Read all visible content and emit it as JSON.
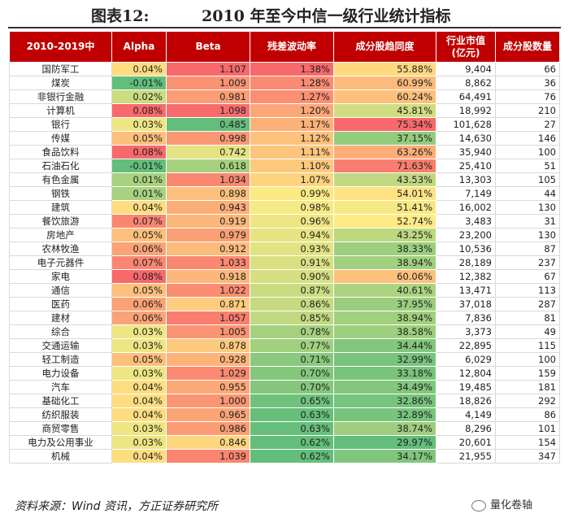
{
  "title": {
    "label": "图表12:",
    "text": "2010 年至今中信一级行业统计指标"
  },
  "columns": [
    "2010-2019中",
    "Alpha",
    "Beta",
    "残差波动率",
    "成分股趋同度",
    "行业市值\n(亿元)",
    "成分股数量"
  ],
  "rows": [
    {
      "industry": "国防军工",
      "alpha": "0.04%",
      "beta": "1.107",
      "resid": "1.38%",
      "conv": "55.88%",
      "mcap": "9,404",
      "count": "66"
    },
    {
      "industry": "煤炭",
      "alpha": "-0.01%",
      "beta": "1.009",
      "resid": "1.28%",
      "conv": "60.99%",
      "mcap": "8,862",
      "count": "36"
    },
    {
      "industry": "非银行金融",
      "alpha": "0.02%",
      "beta": "0.981",
      "resid": "1.27%",
      "conv": "60.24%",
      "mcap": "64,491",
      "count": "76"
    },
    {
      "industry": "计算机",
      "alpha": "0.08%",
      "beta": "1.098",
      "resid": "1.20%",
      "conv": "45.81%",
      "mcap": "18,992",
      "count": "210"
    },
    {
      "industry": "银行",
      "alpha": "0.03%",
      "beta": "0.485",
      "resid": "1.17%",
      "conv": "75.34%",
      "mcap": "101,628",
      "count": "27"
    },
    {
      "industry": "传媒",
      "alpha": "0.05%",
      "beta": "0.998",
      "resid": "1.12%",
      "conv": "37.15%",
      "mcap": "14,630",
      "count": "146"
    },
    {
      "industry": "食品饮料",
      "alpha": "0.08%",
      "beta": "0.742",
      "resid": "1.11%",
      "conv": "63.26%",
      "mcap": "35,940",
      "count": "100"
    },
    {
      "industry": "石油石化",
      "alpha": "-0.01%",
      "beta": "0.618",
      "resid": "1.10%",
      "conv": "71.63%",
      "mcap": "25,410",
      "count": "51"
    },
    {
      "industry": "有色金属",
      "alpha": "0.01%",
      "beta": "1.034",
      "resid": "1.07%",
      "conv": "43.53%",
      "mcap": "13,303",
      "count": "105"
    },
    {
      "industry": "钢铁",
      "alpha": "0.01%",
      "beta": "0.898",
      "resid": "0.99%",
      "conv": "54.01%",
      "mcap": "7,149",
      "count": "44"
    },
    {
      "industry": "建筑",
      "alpha": "0.04%",
      "beta": "0.943",
      "resid": "0.98%",
      "conv": "51.41%",
      "mcap": "16,002",
      "count": "130"
    },
    {
      "industry": "餐饮旅游",
      "alpha": "0.07%",
      "beta": "0.919",
      "resid": "0.96%",
      "conv": "52.74%",
      "mcap": "3,483",
      "count": "31"
    },
    {
      "industry": "房地产",
      "alpha": "0.05%",
      "beta": "0.979",
      "resid": "0.94%",
      "conv": "43.25%",
      "mcap": "23,200",
      "count": "130"
    },
    {
      "industry": "农林牧渔",
      "alpha": "0.06%",
      "beta": "0.912",
      "resid": "0.93%",
      "conv": "38.33%",
      "mcap": "10,536",
      "count": "87"
    },
    {
      "industry": "电子元器件",
      "alpha": "0.07%",
      "beta": "1.033",
      "resid": "0.91%",
      "conv": "38.94%",
      "mcap": "28,189",
      "count": "237"
    },
    {
      "industry": "家电",
      "alpha": "0.08%",
      "beta": "0.918",
      "resid": "0.90%",
      "conv": "60.06%",
      "mcap": "12,382",
      "count": "67"
    },
    {
      "industry": "通信",
      "alpha": "0.05%",
      "beta": "1.022",
      "resid": "0.87%",
      "conv": "40.61%",
      "mcap": "13,471",
      "count": "113"
    },
    {
      "industry": "医药",
      "alpha": "0.06%",
      "beta": "0.871",
      "resid": "0.86%",
      "conv": "37.95%",
      "mcap": "37,018",
      "count": "287"
    },
    {
      "industry": "建材",
      "alpha": "0.06%",
      "beta": "1.057",
      "resid": "0.85%",
      "conv": "38.94%",
      "mcap": "7,836",
      "count": "81"
    },
    {
      "industry": "综合",
      "alpha": "0.03%",
      "beta": "1.005",
      "resid": "0.78%",
      "conv": "38.58%",
      "mcap": "3,373",
      "count": "49"
    },
    {
      "industry": "交通运输",
      "alpha": "0.03%",
      "beta": "0.878",
      "resid": "0.77%",
      "conv": "34.44%",
      "mcap": "22,895",
      "count": "115"
    },
    {
      "industry": "轻工制造",
      "alpha": "0.05%",
      "beta": "0.928",
      "resid": "0.71%",
      "conv": "32.99%",
      "mcap": "6,029",
      "count": "100"
    },
    {
      "industry": "电力设备",
      "alpha": "0.03%",
      "beta": "1.029",
      "resid": "0.70%",
      "conv": "33.18%",
      "mcap": "12,804",
      "count": "159"
    },
    {
      "industry": "汽车",
      "alpha": "0.04%",
      "beta": "0.955",
      "resid": "0.70%",
      "conv": "34.49%",
      "mcap": "19,485",
      "count": "181"
    },
    {
      "industry": "基础化工",
      "alpha": "0.04%",
      "beta": "1.000",
      "resid": "0.65%",
      "conv": "32.86%",
      "mcap": "18,826",
      "count": "292"
    },
    {
      "industry": "纺织服装",
      "alpha": "0.04%",
      "beta": "0.965",
      "resid": "0.63%",
      "conv": "32.89%",
      "mcap": "4,149",
      "count": "86"
    },
    {
      "industry": "商贸零售",
      "alpha": "0.03%",
      "beta": "0.986",
      "resid": "0.63%",
      "conv": "38.74%",
      "mcap": "8,296",
      "count": "101"
    },
    {
      "industry": "电力及公用事业",
      "alpha": "0.03%",
      "beta": "0.846",
      "resid": "0.62%",
      "conv": "29.97%",
      "mcap": "20,601",
      "count": "154"
    },
    {
      "industry": "机械",
      "alpha": "0.04%",
      "beta": "1.039",
      "resid": "0.62%",
      "conv": "34.17%",
      "mcap": "21,955",
      "count": "347"
    }
  ],
  "source": "资料来源：Wind 资讯，方正证券研究所",
  "watermark": "量化卷轴",
  "colors": {
    "header": "#c00000",
    "red": "#f8696b",
    "yellow": "#ffeb84",
    "green": "#63be7b"
  }
}
